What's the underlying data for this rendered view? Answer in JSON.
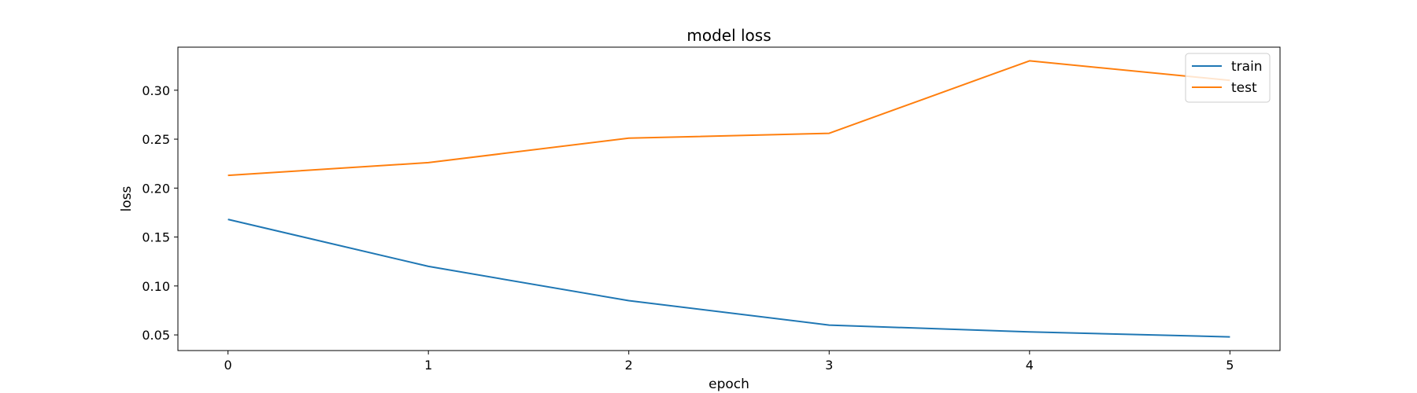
{
  "chart_data": {
    "type": "line",
    "title": "model loss",
    "xlabel": "epoch",
    "ylabel": "loss",
    "x": [
      0,
      1,
      2,
      3,
      4,
      5
    ],
    "xticks": [
      "0",
      "1",
      "2",
      "3",
      "4",
      "5"
    ],
    "yticks": [
      "0.05",
      "0.10",
      "0.15",
      "0.20",
      "0.25",
      "0.30"
    ],
    "xlim": [
      -0.25,
      5.25
    ],
    "ylim": [
      0.034,
      0.344
    ],
    "grid": false,
    "legend_position": "top-right",
    "series": [
      {
        "name": "train",
        "color": "#1f77b4",
        "values": [
          0.168,
          0.12,
          0.085,
          0.06,
          0.053,
          0.048
        ]
      },
      {
        "name": "test",
        "color": "#ff7f0e",
        "values": [
          0.213,
          0.226,
          0.251,
          0.256,
          0.33,
          0.31
        ]
      }
    ]
  }
}
